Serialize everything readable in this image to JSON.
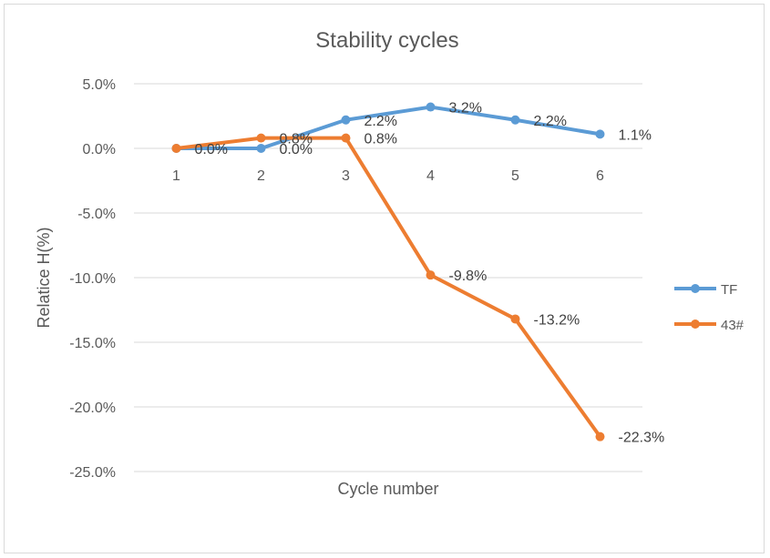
{
  "chart_data": {
    "type": "line",
    "title": "Stability cycles",
    "xlabel": "Cycle number",
    "ylabel": "Relatice H(%)",
    "categories": [
      "1",
      "2",
      "3",
      "4",
      "5",
      "6"
    ],
    "y_ticks": [
      "5.0%",
      "0.0%",
      "-5.0%",
      "-10.0%",
      "-15.0%",
      "-20.0%",
      "-25.0%"
    ],
    "y_tick_values": [
      5,
      0,
      -5,
      -10,
      -15,
      -20,
      -25
    ],
    "ylim": [
      -25,
      5
    ],
    "grid": true,
    "legend_position": "right",
    "series": [
      {
        "name": "TF",
        "color": "#5b9bd5",
        "values": [
          0.0,
          0.0,
          2.2,
          3.2,
          2.2,
          1.1
        ],
        "labels": [
          "0.0%",
          "0.0%",
          "2.2%",
          "3.2%",
          "2.2%",
          "1.1%"
        ]
      },
      {
        "name": "43#",
        "color": "#ed7d31",
        "values": [
          0.0,
          0.8,
          0.8,
          -9.8,
          -13.2,
          -22.3
        ],
        "labels": [
          "",
          "0.8%",
          "0.8%",
          "-9.8%",
          "-13.2%",
          "-22.3%"
        ]
      }
    ]
  }
}
